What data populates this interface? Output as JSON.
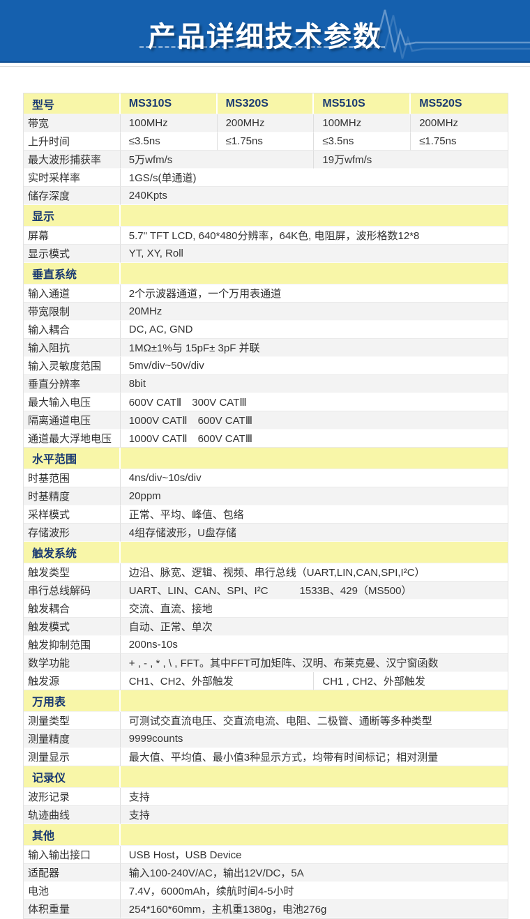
{
  "banner": {
    "title": "产品详细技术参数"
  },
  "colors": {
    "banner_blue": "#1560AE",
    "section_yellow": "#F8F6A8",
    "navy_text": "#1A3A72",
    "body_text": "#333333",
    "stripe_gray": "#F3F3F3"
  },
  "icons": {
    "banner_waveform": "oscilloscope-pulse-waveform",
    "banner_dashes": "dashed-underline"
  },
  "table": {
    "model_header": {
      "label": "型号",
      "models": [
        "MS310S",
        "MS320S",
        "MS510S",
        "MS520S"
      ]
    },
    "sections": [
      {
        "title": null,
        "rows": [
          {
            "label": "带宽",
            "cells": [
              {
                "text": "100MHz",
                "span": 1
              },
              {
                "text": "200MHz",
                "span": 1
              },
              {
                "text": "100MHz",
                "span": 1
              },
              {
                "text": "200MHz",
                "span": 1
              }
            ]
          },
          {
            "label": "上升时间",
            "cells": [
              {
                "text": "≤3.5ns",
                "span": 1
              },
              {
                "text": "≤1.75ns",
                "span": 1
              },
              {
                "text": "≤3.5ns",
                "span": 1
              },
              {
                "text": "≤1.75ns",
                "span": 1
              }
            ]
          },
          {
            "label": "最大波形捕获率",
            "cells": [
              {
                "text": "5万wfm/s",
                "span": 2
              },
              {
                "text": "19万wfm/s",
                "span": 2
              }
            ]
          },
          {
            "label": "实时采样率",
            "cells": [
              {
                "text": "1GS/s(单通道)",
                "span": 4
              }
            ]
          },
          {
            "label": "储存深度",
            "cells": [
              {
                "text": "240Kpts",
                "span": 4
              }
            ]
          }
        ]
      },
      {
        "title": "显示",
        "rows": [
          {
            "label": "屏幕",
            "cells": [
              {
                "text": "5.7\" TFT LCD, 640*480分辨率，64K色, 电阻屏，波形格数12*8",
                "span": 4
              }
            ]
          },
          {
            "label": "显示模式",
            "cells": [
              {
                "text": "YT, XY, Roll",
                "span": 4
              }
            ]
          }
        ]
      },
      {
        "title": "垂直系统",
        "rows": [
          {
            "label": "输入通道",
            "cells": [
              {
                "text": "2个示波器通道，一个万用表通道",
                "span": 4
              }
            ]
          },
          {
            "label": "带宽限制",
            "cells": [
              {
                "text": "20MHz",
                "span": 4
              }
            ]
          },
          {
            "label": "输入耦合",
            "cells": [
              {
                "text": "DC, AC, GND",
                "span": 4
              }
            ]
          },
          {
            "label": "输入阻抗",
            "cells": [
              {
                "text": "1MΩ±1%与 15pF± 3pF 并联",
                "span": 4
              }
            ]
          },
          {
            "label": "输入灵敏度范围",
            "cells": [
              {
                "text": "5mv/div~50v/div",
                "span": 4
              }
            ]
          },
          {
            "label": "垂直分辨率",
            "cells": [
              {
                "text": "8bit",
                "span": 4
              }
            ]
          },
          {
            "label": "最大输入电压",
            "cells": [
              {
                "text": "600V CATⅡ　300V CATⅢ",
                "span": 4
              }
            ]
          },
          {
            "label": "隔离通道电压",
            "cells": [
              {
                "text": "1000V CATⅡ　600V CATⅢ",
                "span": 4
              }
            ]
          },
          {
            "label": "通道最大浮地电压",
            "cells": [
              {
                "text": "1000V CATⅡ　600V CATⅢ",
                "span": 4
              }
            ]
          }
        ]
      },
      {
        "title": "水平范围",
        "rows": [
          {
            "label": "时基范围",
            "cells": [
              {
                "text": "4ns/div~10s/div",
                "span": 4
              }
            ]
          },
          {
            "label": "时基精度",
            "cells": [
              {
                "text": "20ppm",
                "span": 4
              }
            ]
          },
          {
            "label": "采样模式",
            "cells": [
              {
                "text": "正常、平均、峰值、包络",
                "span": 4
              }
            ]
          },
          {
            "label": "存储波形",
            "cells": [
              {
                "text": "4组存储波形，U盘存储",
                "span": 4
              }
            ]
          }
        ]
      },
      {
        "title": "触发系统",
        "rows": [
          {
            "label": "触发类型",
            "cells": [
              {
                "text": "边沿、脉宽、逻辑、视频、串行总线（UART,LIN,CAN,SPI,I²C）",
                "span": 4
              }
            ]
          },
          {
            "label": "串行总线解码",
            "cells": [
              {
                "text": "UART、LIN、CAN、SPI、I²C　　　1533B、429（MS500）",
                "span": 4
              }
            ]
          },
          {
            "label": "触发耦合",
            "cells": [
              {
                "text": "交流、直流、接地",
                "span": 4
              }
            ]
          },
          {
            "label": "触发模式",
            "cells": [
              {
                "text": "自动、正常、单次",
                "span": 4
              }
            ]
          },
          {
            "label": "触发抑制范围",
            "cells": [
              {
                "text": "200ns-10s",
                "span": 4
              }
            ]
          },
          {
            "label": "数学功能",
            "cells": [
              {
                "text": "+ , - , * , \\ , FFT。其中FFT可加矩阵、汉明、布莱克曼、汉宁窗函数",
                "span": 4
              }
            ]
          },
          {
            "label": "触发源",
            "cells": [
              {
                "text": "CH1、CH2、外部触发",
                "span": 2
              },
              {
                "text": "CH1 , CH2、外部触发",
                "span": 2
              }
            ]
          }
        ]
      },
      {
        "title": "万用表",
        "rows": [
          {
            "label": "测量类型",
            "cells": [
              {
                "text": "可测试交直流电压、交直流电流、电阻、二极管、通断等多种类型",
                "span": 4
              }
            ]
          },
          {
            "label": "测量精度",
            "cells": [
              {
                "text": "9999counts",
                "span": 4
              }
            ]
          },
          {
            "label": "测量显示",
            "cells": [
              {
                "text": "最大值、平均值、最小值3种显示方式，均带有时间标记；相对测量",
                "span": 4
              }
            ]
          }
        ]
      },
      {
        "title": "记录仪",
        "rows": [
          {
            "label": "波形记录",
            "cells": [
              {
                "text": "支持",
                "span": 4
              }
            ]
          },
          {
            "label": "轨迹曲线",
            "cells": [
              {
                "text": "支持",
                "span": 4
              }
            ]
          }
        ]
      },
      {
        "title": "其他",
        "rows": [
          {
            "label": "输入输出接口",
            "cells": [
              {
                "text": "USB Host，USB Device",
                "span": 4
              }
            ]
          },
          {
            "label": "适配器",
            "cells": [
              {
                "text": "输入100-240V/AC，输出12V/DC，5A",
                "span": 4
              }
            ]
          },
          {
            "label": "电池",
            "cells": [
              {
                "text": "7.4V，6000mAh，续航时间4-5小时",
                "span": 4
              }
            ]
          },
          {
            "label": "体积重量",
            "cells": [
              {
                "text": "254*160*60mm，主机重1380g，电池276g",
                "span": 4
              }
            ]
          }
        ]
      }
    ]
  }
}
